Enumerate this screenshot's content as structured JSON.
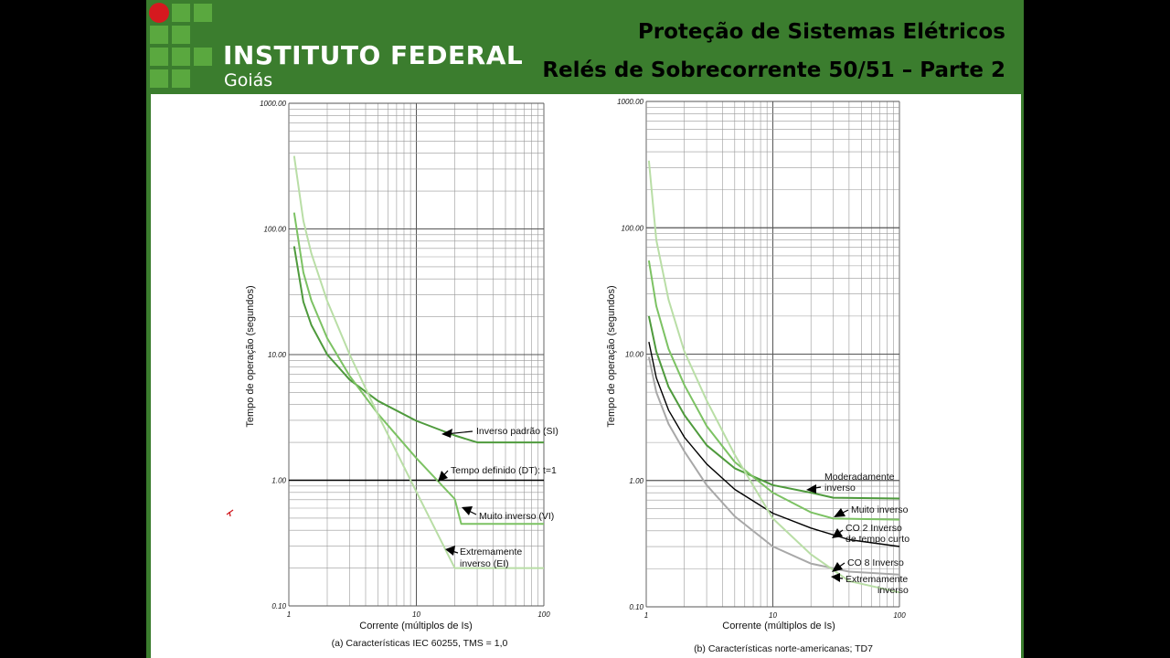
{
  "header": {
    "institution": "INSTITUTO FEDERAL",
    "campus": "Goiás",
    "title_line1": "Proteção de Sistemas Elétricos",
    "title_line2": "Relés de Sobrecorrente 50/51 – Parte 2"
  },
  "colors": {
    "header_bg": "#3b7d2e",
    "logo_green": "#5aa83f",
    "logo_red": "#d6191f",
    "curve_dark_green": "#4e9a3c",
    "curve_mid_green": "#7cc263",
    "curve_light_green": "#b9dea6",
    "curve_black": "#000000",
    "curve_gray": "#a8a8a8"
  },
  "chart_data": [
    {
      "type": "line",
      "log_x": true,
      "log_y": true,
      "xlim": [
        1,
        100
      ],
      "ylim": [
        0.1,
        1000
      ],
      "grid": true,
      "ylabel": "Tempo de operação (segundos)",
      "xlabel": "Corrente (múltiplos de Is)",
      "caption": "(a) Características IEC 60255, TMS = 1,0",
      "y_ticks": [
        "1000.00",
        "100.00",
        "10.00",
        "1.00",
        "0.10"
      ],
      "x_ticks": [
        "1",
        "10",
        "100"
      ],
      "series": [
        {
          "name": "Inverso padrão (SI)",
          "color": "#4e9a3c",
          "points": [
            [
              1.1,
              72.7
            ],
            [
              1.3,
              26.3
            ],
            [
              1.5,
              17.2
            ],
            [
              2,
              10.0
            ],
            [
              3,
              6.3
            ],
            [
              5,
              4.28
            ],
            [
              10,
              2.97
            ],
            [
              20,
              2.27
            ],
            [
              30,
              2.0
            ],
            [
              100,
              2.0
            ]
          ]
        },
        {
          "name": "Tempo definido (DT): t=1",
          "color": "#000000",
          "points": [
            [
              1,
              1.0
            ],
            [
              100,
              1.0
            ]
          ]
        },
        {
          "name": "Muito inverso (VI)",
          "color": "#7cc263",
          "points": [
            [
              1.1,
              135
            ],
            [
              1.3,
              45
            ],
            [
              1.5,
              27
            ],
            [
              2,
              13.5
            ],
            [
              3,
              6.75
            ],
            [
              5,
              3.38
            ],
            [
              10,
              1.5
            ],
            [
              20,
              0.71
            ],
            [
              22.5,
              0.45
            ],
            [
              100,
              0.45
            ]
          ]
        },
        {
          "name": "Extremamente inverso (EI)",
          "color": "#b9dea6",
          "points": [
            [
              1.1,
              381
            ],
            [
              1.3,
              116
            ],
            [
              1.5,
              64
            ],
            [
              2,
              26.7
            ],
            [
              3,
              10
            ],
            [
              5,
              3.33
            ],
            [
              10,
              0.81
            ],
            [
              20,
              0.2
            ],
            [
              100,
              0.2
            ]
          ]
        }
      ],
      "annotations": [
        "Inverso padrão (SI)",
        "Tempo definido (DT): t=1",
        "Muito inverso (VI)",
        "Extremamente",
        "inverso (EI)"
      ]
    },
    {
      "type": "line",
      "log_x": true,
      "log_y": true,
      "xlim": [
        1,
        100
      ],
      "ylim": [
        0.1,
        1000
      ],
      "grid": true,
      "ylabel": "Tempo de operação (segundos)",
      "xlabel": "Corrente (múltiplos de Is)",
      "caption": "(b) Características norte-americanas; TD7",
      "y_ticks": [
        "1000.00",
        "100.00",
        "10.00",
        "1.00",
        "0.10"
      ],
      "x_ticks": [
        "1",
        "10",
        "100"
      ],
      "series": [
        {
          "name": "Moderadamente inverso",
          "color": "#4e9a3c",
          "points": [
            [
              1.05,
              20
            ],
            [
              1.2,
              10.5
            ],
            [
              1.5,
              5.5
            ],
            [
              2,
              3.3
            ],
            [
              3,
              1.9
            ],
            [
              5,
              1.25
            ],
            [
              10,
              0.92
            ],
            [
              20,
              0.8
            ],
            [
              30,
              0.73
            ],
            [
              100,
              0.72
            ]
          ]
        },
        {
          "name": "Muito inverso",
          "color": "#7cc263",
          "points": [
            [
              1.05,
              55
            ],
            [
              1.2,
              24
            ],
            [
              1.5,
              11
            ],
            [
              2,
              5.7
            ],
            [
              3,
              2.7
            ],
            [
              5,
              1.4
            ],
            [
              10,
              0.8
            ],
            [
              20,
              0.56
            ],
            [
              30,
              0.5
            ],
            [
              100,
              0.49
            ]
          ]
        },
        {
          "name": "CO 2 Inverso de tempo curto",
          "color": "#000000",
          "points": [
            [
              1.05,
              12.5
            ],
            [
              1.2,
              6.5
            ],
            [
              1.5,
              3.6
            ],
            [
              2,
              2.2
            ],
            [
              3,
              1.35
            ],
            [
              5,
              0.85
            ],
            [
              10,
              0.55
            ],
            [
              20,
              0.42
            ],
            [
              40,
              0.34
            ],
            [
              100,
              0.3
            ]
          ]
        },
        {
          "name": "CO 8 Inverso",
          "color": "#a8a8a8",
          "points": [
            [
              1.05,
              9.5
            ],
            [
              1.2,
              5.0
            ],
            [
              1.5,
              2.8
            ],
            [
              2,
              1.7
            ],
            [
              3,
              0.92
            ],
            [
              5,
              0.52
            ],
            [
              10,
              0.3
            ],
            [
              20,
              0.22
            ],
            [
              40,
              0.19
            ],
            [
              100,
              0.18
            ]
          ]
        },
        {
          "name": "Extremamente inverso",
          "color": "#b9dea6",
          "points": [
            [
              1.05,
              340
            ],
            [
              1.2,
              80
            ],
            [
              1.5,
              27
            ],
            [
              2,
              10.5
            ],
            [
              3,
              4.3
            ],
            [
              5,
              1.6
            ],
            [
              10,
              0.5
            ],
            [
              20,
              0.26
            ],
            [
              40,
              0.16
            ],
            [
              100,
              0.13
            ]
          ]
        }
      ],
      "annotations": [
        "Moderadamente",
        "inverso",
        "Muito inverso",
        "CO 2 Inverso",
        "de tempo curto",
        "CO 8 Inverso",
        "Extremamente",
        "inverso"
      ]
    }
  ]
}
